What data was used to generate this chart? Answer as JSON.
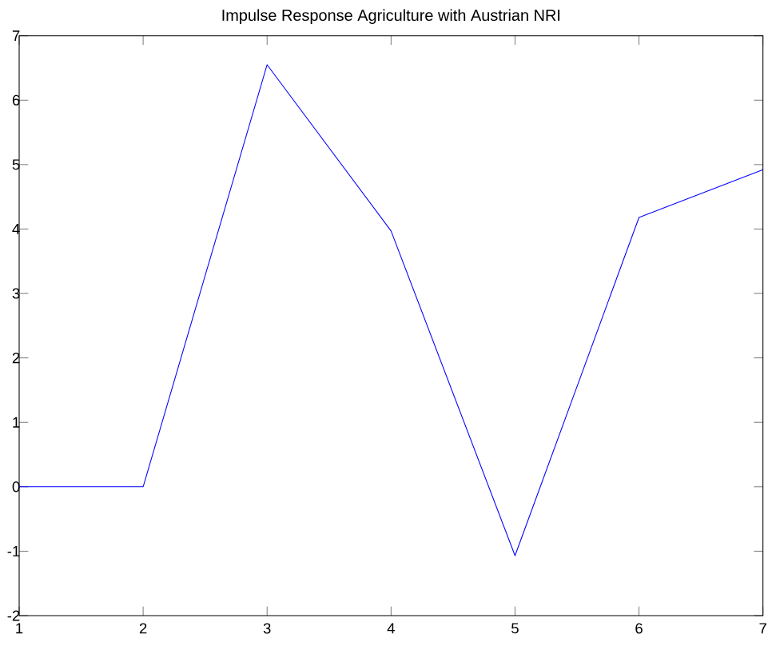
{
  "chart_data": {
    "type": "line",
    "title": "Impulse Response Agriculture with Austrian NRI",
    "x": [
      1,
      2,
      3,
      4,
      5,
      6,
      7
    ],
    "series": [
      {
        "color": "#0000ff",
        "values": [
          0,
          0,
          6.55,
          3.97,
          -1.07,
          4.18,
          4.92
        ]
      }
    ],
    "xlim": [
      1,
      7
    ],
    "xticks": [
      1,
      2,
      3,
      4,
      5,
      6,
      7
    ],
    "ylim": [
      -2,
      7
    ],
    "yticks": [
      -2,
      -1,
      0,
      1,
      2,
      3,
      4,
      5,
      6,
      7
    ],
    "grid": false,
    "marker": "none",
    "line_style": "solid"
  }
}
